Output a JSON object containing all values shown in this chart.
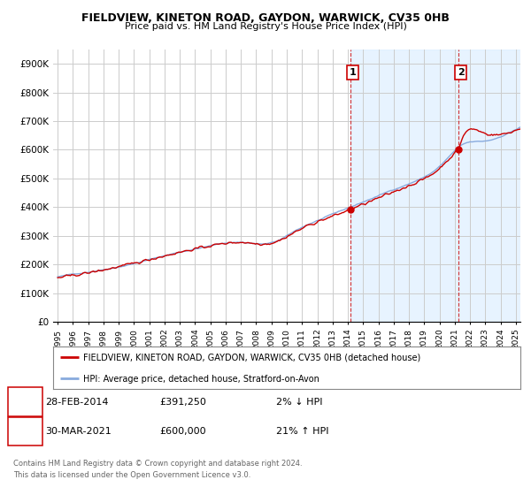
{
  "title": "FIELDVIEW, KINETON ROAD, GAYDON, WARWICK, CV35 0HB",
  "subtitle": "Price paid vs. HM Land Registry's House Price Index (HPI)",
  "ylabel_ticks": [
    "£0",
    "£100K",
    "£200K",
    "£300K",
    "£400K",
    "£500K",
    "£600K",
    "£700K",
    "£800K",
    "£900K"
  ],
  "ytick_vals": [
    0,
    100000,
    200000,
    300000,
    400000,
    500000,
    600000,
    700000,
    800000,
    900000
  ],
  "ylim": [
    0,
    950000
  ],
  "xlim_start": 1994.7,
  "xlim_end": 2025.3,
  "sale1_date": 2014.16,
  "sale1_price": 391250,
  "sale1_label": "1",
  "sale2_date": 2021.25,
  "sale2_price": 600000,
  "sale2_label": "2",
  "sale1_info_date": "28-FEB-2014",
  "sale1_info_price": "£391,250",
  "sale1_info_hpi": "2% ↓ HPI",
  "sale2_info_date": "30-MAR-2021",
  "sale2_info_price": "£600,000",
  "sale2_info_hpi": "21% ↑ HPI",
  "legend_line1": "FIELDVIEW, KINETON ROAD, GAYDON, WARWICK, CV35 0HB (detached house)",
  "legend_line2": "HPI: Average price, detached house, Stratford-on-Avon",
  "footer1": "Contains HM Land Registry data © Crown copyright and database right 2024.",
  "footer2": "This data is licensed under the Open Government Licence v3.0.",
  "line_color_red": "#cc0000",
  "line_color_blue": "#88aadd",
  "shade_color": "#ddeeff",
  "bg_color": "#ffffff",
  "grid_color": "#cccccc"
}
